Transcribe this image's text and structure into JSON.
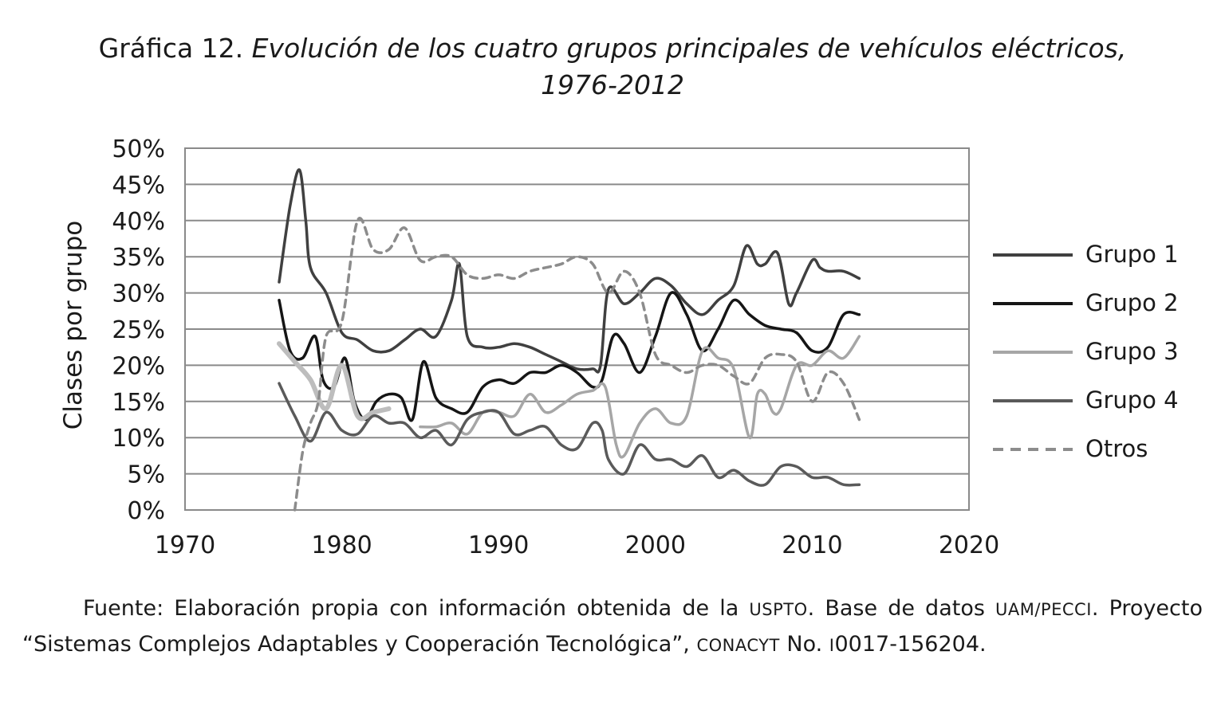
{
  "title": {
    "prefix": "Gráfica 12.",
    "italic_line1": "Evolución de los cuatro grupos principales de vehículos eléctricos,",
    "italic_line2": "1976-2012"
  },
  "caption": {
    "t1": "Fuente: Elaboración propia con información obtenida de la ",
    "sc1": "USPTO",
    "t2": ". Base de datos ",
    "sc2": "UAM/PECCI",
    "t3": ". Proyecto “Sistemas Complejos Adaptables y Cooperación Tecnológica”, ",
    "sc3": "CONACYT",
    "t4": " No. ",
    "sc4": "I",
    "t5": "0017-156204."
  },
  "chart_data": {
    "type": "line",
    "ylabel": "Clases por grupo",
    "xlabel": "",
    "xlim": [
      1970,
      2020
    ],
    "ylim": [
      0,
      50
    ],
    "xticks": [
      "1970",
      "1980",
      "1990",
      "2000",
      "2010",
      "2020"
    ],
    "yticks": [
      "0%",
      "5%",
      "10%",
      "15%",
      "20%",
      "25%",
      "30%",
      "35%",
      "40%",
      "45%",
      "50%"
    ],
    "grid": "horizontal",
    "legend_position": "right",
    "series": [
      {
        "name": "Grupo 1",
        "color": "#404040",
        "dash": false,
        "x": [
          1976,
          1976.7,
          1977.3,
          1977.7,
          1978,
          1979,
          1980,
          1981,
          1982,
          1983,
          1984,
          1985,
          1986,
          1987,
          1987.5,
          1988,
          1989,
          1990,
          1991,
          1992,
          1993,
          1994,
          1995,
          1996,
          1996.5,
          1997,
          1998,
          1999,
          2000,
          2001,
          2002,
          2003,
          2004,
          2005,
          2005.8,
          2006.5,
          2007,
          2007.8,
          2008.5,
          2009,
          2010,
          2010.5,
          2011,
          2012,
          2013
        ],
        "y": [
          31.5,
          42,
          47,
          40,
          33.5,
          30,
          24.5,
          23.5,
          22,
          22,
          23.5,
          25,
          24,
          29,
          34,
          24,
          22.5,
          22.5,
          23,
          22.5,
          21.5,
          20.5,
          19.5,
          19.5,
          20,
          30.5,
          28.5,
          30,
          32,
          31,
          28.5,
          27,
          29,
          31,
          36.5,
          34,
          34,
          35.5,
          28.5,
          30,
          34.5,
          33.5,
          33,
          33,
          32
        ]
      },
      {
        "name": "Grupo 2",
        "color": "#151515",
        "dash": false,
        "x": [
          1976,
          1976.7,
          1977.5,
          1978.3,
          1978.8,
          1979.5,
          1980.2,
          1980.8,
          1981.5,
          1982.2,
          1983,
          1983.8,
          1984.5,
          1985.2,
          1986,
          1987,
          1988,
          1989,
          1990,
          1991,
          1992,
          1993,
          1994,
          1995,
          1996,
          1996.6,
          1997.3,
          1998,
          1999,
          2000,
          2001,
          2002,
          2003,
          2004,
          2005,
          2006,
          2007,
          2008,
          2009,
          2010,
          2011,
          2012,
          2013
        ],
        "y": [
          29,
          22,
          21,
          24,
          18,
          17,
          21,
          15,
          12.5,
          15,
          16,
          15.5,
          12.5,
          20.5,
          15.5,
          14,
          13.5,
          17,
          18,
          17.5,
          19,
          19,
          20,
          19,
          17,
          18,
          24,
          23,
          19,
          24,
          30,
          27,
          22,
          25,
          29,
          27,
          25.5,
          25,
          24.5,
          22,
          22.5,
          27,
          27
        ]
      },
      {
        "name": "Grupo 3",
        "color": "#a6a6a6",
        "dash": false,
        "x": [
          1985,
          1986,
          1987,
          1988,
          1989,
          1990,
          1991,
          1992,
          1993,
          1994,
          1995,
          1996,
          1996.8,
          1997.5,
          1998,
          1999,
          2000,
          2001,
          2002,
          2003,
          2004,
          2005,
          2006,
          2006.5,
          2007,
          2007.5,
          2008,
          2009,
          2010,
          2011,
          2012,
          2013
        ],
        "y": [
          11.5,
          11.5,
          12,
          10.5,
          13.5,
          13.5,
          13,
          16,
          13.5,
          14.5,
          16,
          16.5,
          17,
          9,
          7.5,
          12,
          14,
          12,
          13,
          22,
          21,
          19.5,
          10,
          16,
          16,
          13.5,
          14,
          20,
          20,
          22,
          21,
          24
        ]
      },
      {
        "name": "Grupo 3 (inicio)",
        "color": "#bdbdbd",
        "dash": false,
        "width": 6,
        "x": [
          1976,
          1977,
          1978,
          1979,
          1980,
          1981,
          1982,
          1983
        ],
        "y": [
          23,
          20.5,
          18,
          14,
          20,
          13,
          13.5,
          14
        ]
      },
      {
        "name": "Grupo 4",
        "color": "#5a5a5a",
        "dash": false,
        "x": [
          1976,
          1977,
          1978,
          1979,
          1980,
          1981,
          1982,
          1983,
          1984,
          1985,
          1986,
          1987,
          1988,
          1989,
          1990,
          1991,
          1992,
          1993,
          1994,
          1995,
          1996,
          1996.6,
          1997,
          1998,
          1999,
          2000,
          2001,
          2002,
          2003,
          2004,
          2005,
          2006,
          2007,
          2008,
          2009,
          2010,
          2011,
          2012,
          2013
        ],
        "y": [
          17.5,
          13,
          9.5,
          13.5,
          11,
          10.5,
          13,
          12,
          12,
          10,
          11,
          9,
          12.5,
          13.5,
          13.5,
          10.5,
          11,
          11.5,
          9,
          8.5,
          12,
          11,
          7,
          5,
          9,
          7,
          7,
          6,
          7.5,
          4.5,
          5.5,
          4,
          3.5,
          6,
          6,
          4.5,
          4.5,
          3.5,
          3.5
        ]
      },
      {
        "name": "Otros",
        "color": "#8c8c8c",
        "dash": true,
        "x": [
          1977,
          1977.5,
          1978,
          1978.5,
          1979,
          1980,
          1981,
          1982,
          1983,
          1984,
          1985,
          1986,
          1987,
          1988,
          1989,
          1990,
          1991,
          1992,
          1993,
          1994,
          1995,
          1996,
          1997,
          1998,
          1999,
          2000,
          2001,
          2002,
          2003,
          2004,
          2005,
          2006,
          2007,
          2008,
          2009,
          2010,
          2011,
          2012,
          2013
        ],
        "y": [
          0,
          8,
          12,
          15,
          24,
          26,
          40,
          36,
          36,
          39,
          34.5,
          35,
          35,
          32.5,
          32,
          32.5,
          32,
          33,
          33.5,
          34,
          35,
          34,
          30,
          33,
          30,
          21.5,
          20,
          19,
          20,
          20,
          18.5,
          17.5,
          21,
          21.5,
          20.5,
          15,
          19,
          17.5,
          12.5
        ]
      }
    ],
    "legend": [
      "Grupo 1",
      "Grupo 2",
      "Grupo 3",
      "Grupo 4",
      "Otros"
    ]
  }
}
